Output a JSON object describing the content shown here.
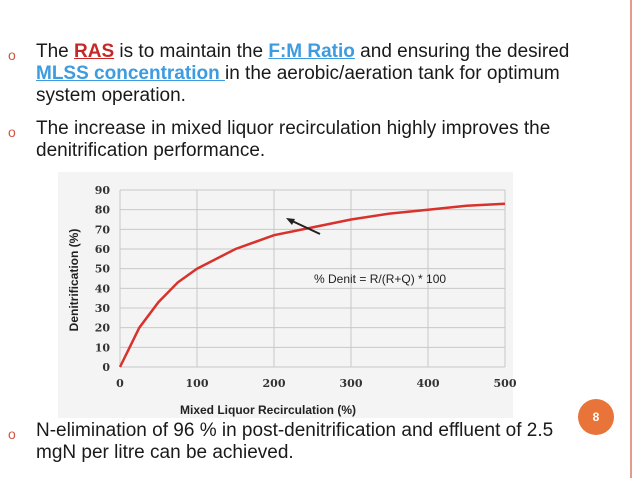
{
  "bullets": [
    {
      "mark": "o",
      "parts": {
        "p1": "The ",
        "ras": "RAS",
        "p2": " is to maintain the ",
        "fm": "F:M Ratio",
        "p3": "  and ensuring the desired ",
        "mlss": "MLSS concentration ",
        "p4": "in the aerobic/aeration tank for optimum system operation."
      }
    },
    {
      "mark": "o",
      "text": "The increase in mixed liquor recirculation highly improves the denitrification performance."
    },
    {
      "mark": "o",
      "text": "N-elimination of 96 % in post-denitrification and effluent of  2.5 mgN per litre can be achieved."
    }
  ],
  "page_number": "8",
  "colors": {
    "accent_red": "#c62828",
    "accent_blue": "#3d9be0",
    "curve": "#d8322c",
    "badge": "#e8743a"
  },
  "chart_data": {
    "type": "line",
    "xlabel": "Mixed Liquor Recirculation (%)",
    "ylabel": "Denitrification (%)",
    "xlim": [
      0,
      500
    ],
    "ylim": [
      0,
      90
    ],
    "x_ticks": [
      "0",
      "100",
      "200",
      "300",
      "400",
      "500"
    ],
    "y_ticks": [
      "0",
      "10",
      "20",
      "30",
      "40",
      "50",
      "60",
      "70",
      "80",
      "90"
    ],
    "annotation": "% Denit = R/(R+Q) * 100",
    "grid": true,
    "series": [
      {
        "x": [
          0,
          25,
          50,
          75,
          100,
          150,
          200,
          250,
          300,
          350,
          400,
          450,
          500
        ],
        "y": [
          0,
          20,
          33,
          43,
          50,
          60,
          67,
          71,
          75,
          78,
          80,
          82,
          83
        ]
      }
    ]
  }
}
